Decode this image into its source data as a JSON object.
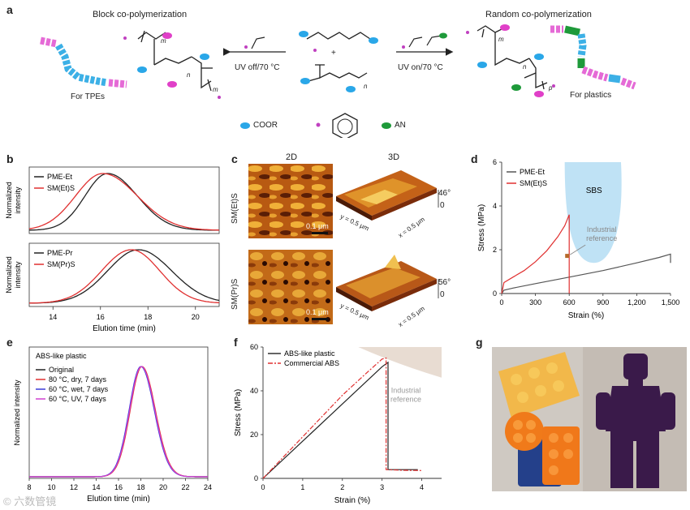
{
  "panel_a": {
    "label": "a",
    "block_title": "Block co-polymerization",
    "random_title": "Random co-polymerization",
    "uv_off": "UV off/70 °C",
    "uv_on": "UV on/70 °C",
    "for_tpes": "For TPEs",
    "for_plastics": "For plastics",
    "plus": "+",
    "legend": {
      "coor": "COOR",
      "an": "AN"
    },
    "colors": {
      "coor": "#2aa7e8",
      "styrene": "#e040c8",
      "an": "#1e9a3a"
    },
    "sub_m": "m",
    "sub_n": "n",
    "sub_p": "p"
  },
  "panel_c": {
    "label": "c",
    "col_2d": "2D",
    "col_3d": "3D",
    "row1": "SM(Et)S",
    "row2": "SM(Pr)S",
    "scale": "0.1 μm",
    "height1": "46°",
    "height2": "56°",
    "zero": "0",
    "axis_y": "y = 0.5 μm",
    "axis_x": "x = 0.5 μm"
  },
  "panel_g": {
    "label": "g"
  },
  "watermark": "©  六数管镜",
  "chart_data": [
    {
      "id": "b",
      "type": "line",
      "label": "b",
      "xlabel": "Elution time (min)",
      "ylabel_top": "Normalized intensity",
      "ylabel_bottom": "Normalized intensity",
      "xlim": [
        13,
        21
      ],
      "xticks": [
        14,
        16,
        18,
        20
      ],
      "top": {
        "series": [
          {
            "name": "PME-Et",
            "color": "#222222",
            "peak": 16.3,
            "width_left": 0.95,
            "width_right": 1.25
          },
          {
            "name": "SM(Et)S",
            "color": "#e03030",
            "peak": 16.1,
            "width_left": 1.15,
            "width_right": 1.45
          }
        ]
      },
      "bottom": {
        "series": [
          {
            "name": "PME-Pr",
            "color": "#222222",
            "peak": 17.6,
            "width_left": 1.3,
            "width_right": 1.4
          },
          {
            "name": "SM(Pr)S",
            "color": "#e03030",
            "peak": 17.3,
            "width_left": 1.25,
            "width_right": 1.2
          }
        ]
      }
    },
    {
      "id": "d",
      "type": "line",
      "label": "d",
      "xlabel": "Strain (%)",
      "ylabel": "Stress (MPa)",
      "xlim": [
        0,
        1500
      ],
      "ylim": [
        0,
        6
      ],
      "xticks": [
        "0",
        "300",
        "600",
        "900",
        "1,200",
        "1,500"
      ],
      "yticks": [
        0,
        2,
        4,
        6
      ],
      "region_label": "SBS",
      "region_color": "#bfe2f5",
      "reference_label": "Industrial reference",
      "reference_point": [
        600,
        1.7
      ],
      "series": [
        {
          "name": "PME-Et",
          "color": "#555555",
          "x": [
            0,
            20,
            100,
            300,
            600,
            900,
            1200,
            1400,
            1500,
            1500
          ],
          "y": [
            0,
            0.15,
            0.25,
            0.45,
            0.75,
            1.05,
            1.4,
            1.65,
            1.8,
            1.4
          ]
        },
        {
          "name": "SM(Et)S",
          "color": "#e03030",
          "x": [
            0,
            20,
            100,
            200,
            300,
            400,
            500,
            560,
            600,
            600
          ],
          "y": [
            0,
            0.5,
            0.75,
            1.05,
            1.45,
            1.95,
            2.6,
            3.1,
            3.6,
            0
          ]
        }
      ]
    },
    {
      "id": "e",
      "type": "line",
      "label": "e",
      "title": "ABS-like plastic",
      "xlabel": "Elution time (min)",
      "ylabel": "Normalized intensity",
      "xlim": [
        8,
        24
      ],
      "xticks": [
        8,
        10,
        12,
        14,
        16,
        18,
        20,
        22,
        24
      ],
      "series": [
        {
          "name": "Original",
          "color": "#222222",
          "peak": 18.05
        },
        {
          "name": "80 °C, dry, 7 days",
          "color": "#e03030",
          "peak": 18.1
        },
        {
          "name": "60 °C, wet, 7 days",
          "color": "#3a3ad8",
          "peak": 18.0
        },
        {
          "name": "60 °C, UV, 7 days",
          "color": "#d040d0",
          "peak": 18.05
        }
      ]
    },
    {
      "id": "f",
      "type": "line",
      "label": "f",
      "xlabel": "Strain (%)",
      "ylabel": "Stress (MPa)",
      "xlim": [
        0,
        4.5
      ],
      "ylim": [
        0,
        60
      ],
      "xticks": [
        0,
        1,
        2,
        3,
        4
      ],
      "yticks": [
        0,
        20,
        40,
        60
      ],
      "reference_label": "Industrial reference",
      "series": [
        {
          "name": "ABS-like plastic",
          "color": "#222222",
          "dash": "",
          "x": [
            0,
            1,
            2,
            3,
            3.15,
            3.15,
            3.3,
            3.9
          ],
          "y": [
            0,
            17,
            34,
            51,
            53,
            4,
            4,
            4
          ]
        },
        {
          "name": "Commercial ABS",
          "color": "#e03030",
          "dash": "6,2,2,2",
          "x": [
            0,
            1,
            2,
            2.6,
            3.0,
            3.1,
            3.1,
            3.5,
            4.0
          ],
          "y": [
            0,
            19,
            38,
            48,
            54.5,
            55,
            4,
            3.7,
            3.6
          ]
        }
      ]
    }
  ]
}
